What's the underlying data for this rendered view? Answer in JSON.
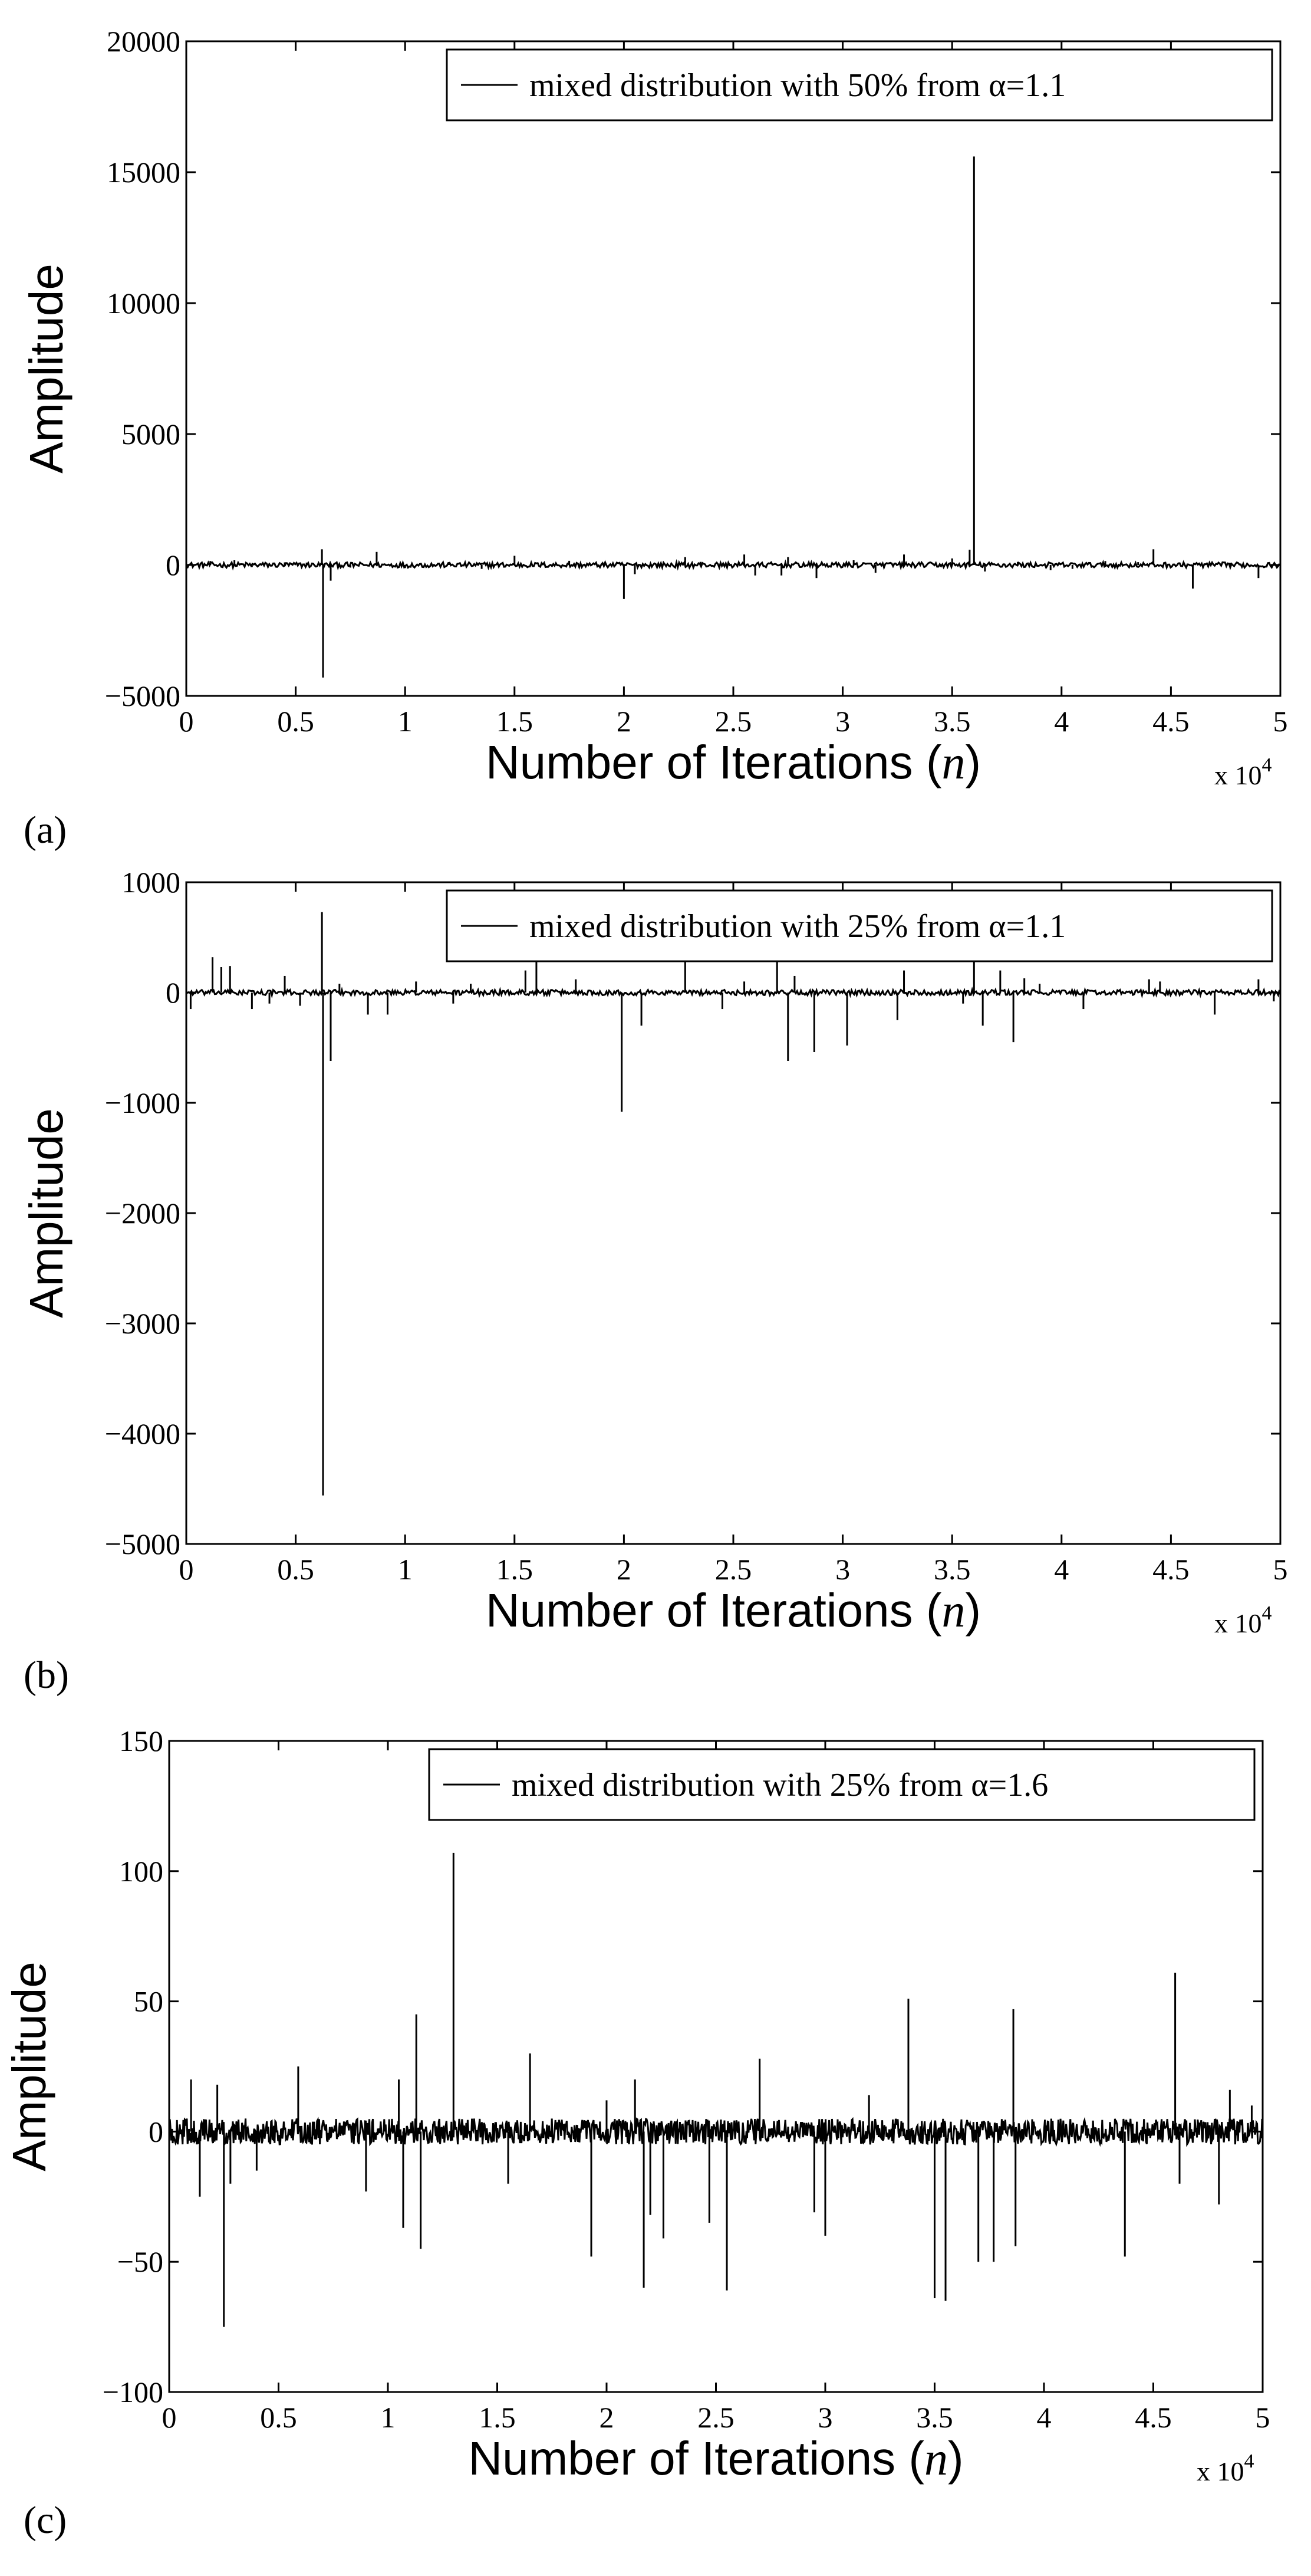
{
  "figure": {
    "panels": [
      "(a)",
      "(b)",
      "(c)"
    ]
  },
  "chart_data": [
    {
      "type": "line",
      "panel_label": "(a)",
      "xlabel": "Number of Iterations (n)",
      "xlabel_main": "Number of Iterations (",
      "xlabel_var": "n",
      "xlabel_close": ")",
      "ylabel": "Amplitude",
      "xlim": [
        0,
        5
      ],
      "ylim": [
        -5000,
        20000
      ],
      "x_scale_label": "x 10",
      "x_scale_exp": "4",
      "xticks": [
        "0",
        "0.5",
        "1",
        "1.5",
        "2",
        "2.5",
        "3",
        "3.5",
        "4",
        "4.5",
        "5"
      ],
      "yticks": [
        "-5000",
        "0",
        "5000",
        "10000",
        "15000",
        "20000"
      ],
      "legend": {
        "label": "mixed distribution with 50% from α=1.1",
        "position": "top-right"
      },
      "series": [
        {
          "name": "mixed distribution with 50% from α=1.1",
          "spikes": [
            [
              0.11,
              150
            ],
            [
              0.22,
              180
            ],
            [
              0.3,
              -80
            ],
            [
              0.45,
              100
            ],
            [
              0.55,
              90
            ],
            [
              0.62,
              600
            ],
            [
              0.625,
              -4300
            ],
            [
              0.66,
              -600
            ],
            [
              0.87,
              500
            ],
            [
              1.0,
              -120
            ],
            [
              1.2,
              90
            ],
            [
              1.5,
              350
            ],
            [
              1.75,
              160
            ],
            [
              2.0,
              -1300
            ],
            [
              2.05,
              -350
            ],
            [
              2.28,
              300
            ],
            [
              2.55,
              400
            ],
            [
              2.6,
              -400
            ],
            [
              2.72,
              -400
            ],
            [
              2.75,
              300
            ],
            [
              2.88,
              -500
            ],
            [
              3.15,
              -300
            ],
            [
              3.28,
              400
            ],
            [
              3.5,
              250
            ],
            [
              3.58,
              580
            ],
            [
              3.6,
              15600
            ],
            [
              3.65,
              -250
            ],
            [
              3.8,
              120
            ],
            [
              3.95,
              -200
            ],
            [
              4.2,
              150
            ],
            [
              4.42,
              600
            ],
            [
              4.6,
              -900
            ],
            [
              4.77,
              80
            ],
            [
              4.9,
              -500
            ],
            [
              0.75,
              -100
            ],
            [
              1.35,
              -150
            ],
            [
              2.35,
              120
            ],
            [
              3.05,
              180
            ],
            [
              4.05,
              -150
            ],
            [
              4.35,
              110
            ]
          ]
        }
      ],
      "grid": false
    },
    {
      "type": "line",
      "panel_label": "(b)",
      "xlabel": "Number of Iterations (n)",
      "xlabel_main": "Number of Iterations (",
      "xlabel_var": "n",
      "xlabel_close": ")",
      "ylabel": "Amplitude",
      "xlim": [
        0,
        5
      ],
      "ylim": [
        -5000,
        1000
      ],
      "x_scale_label": "x 10",
      "x_scale_exp": "4",
      "xticks": [
        "0",
        "0.5",
        "1",
        "1.5",
        "2",
        "2.5",
        "3",
        "3.5",
        "4",
        "4.5",
        "5"
      ],
      "yticks": [
        "-5000",
        "-4000",
        "-3000",
        "-2000",
        "-1000",
        "0",
        "1000"
      ],
      "legend": {
        "label": "mixed distribution with 25% from α=1.1",
        "position": "top-right"
      },
      "series": [
        {
          "name": "mixed distribution with 25% from α=1.1",
          "spikes": [
            [
              0.02,
              -150
            ],
            [
              0.12,
              320
            ],
            [
              0.16,
              230
            ],
            [
              0.2,
              240
            ],
            [
              0.3,
              -150
            ],
            [
              0.38,
              -100
            ],
            [
              0.45,
              150
            ],
            [
              0.52,
              -120
            ],
            [
              0.62,
              730
            ],
            [
              0.625,
              -4560
            ],
            [
              0.66,
              -620
            ],
            [
              0.7,
              80
            ],
            [
              0.83,
              -200
            ],
            [
              0.92,
              -200
            ],
            [
              1.05,
              100
            ],
            [
              1.22,
              -100
            ],
            [
              1.55,
              200
            ],
            [
              1.6,
              300
            ],
            [
              1.78,
              120
            ],
            [
              1.99,
              -1080
            ],
            [
              2.08,
              -300
            ],
            [
              2.28,
              300
            ],
            [
              2.45,
              -150
            ],
            [
              2.55,
              100
            ],
            [
              2.7,
              300
            ],
            [
              2.75,
              -620
            ],
            [
              2.78,
              150
            ],
            [
              2.87,
              -540
            ],
            [
              3.02,
              -480
            ],
            [
              3.25,
              -250
            ],
            [
              3.28,
              200
            ],
            [
              3.55,
              -100
            ],
            [
              3.6,
              300
            ],
            [
              3.64,
              -300
            ],
            [
              3.72,
              200
            ],
            [
              3.78,
              -450
            ],
            [
              3.83,
              130
            ],
            [
              4.1,
              -150
            ],
            [
              4.4,
              120
            ],
            [
              4.45,
              100
            ],
            [
              4.7,
              -200
            ],
            [
              4.9,
              120
            ],
            [
              4.97,
              -80
            ],
            [
              3.9,
              80
            ],
            [
              1.3,
              80
            ]
          ]
        }
      ],
      "grid": false
    },
    {
      "type": "line",
      "panel_label": "(c)",
      "xlabel": "Number of Iterations (n)",
      "xlabel_main": "Number of Iterations (",
      "xlabel_var": "n",
      "xlabel_close": ")",
      "ylabel": "Amplitude",
      "xlim": [
        0,
        5
      ],
      "ylim": [
        -100,
        150
      ],
      "x_scale_label": "x 10",
      "x_scale_exp": "4",
      "xticks": [
        "0",
        "0.5",
        "1",
        "1.5",
        "2",
        "2.5",
        "3",
        "3.5",
        "4",
        "4.5",
        "5"
      ],
      "yticks": [
        "-100",
        "-50",
        "0",
        "50",
        "100",
        "150"
      ],
      "legend": {
        "label": "mixed distribution with 25% from α=1.6",
        "position": "top-right"
      },
      "series": [
        {
          "name": "mixed distribution with 25% from α=1.6",
          "noise_amplitude": 5,
          "spikes": [
            [
              0.1,
              20
            ],
            [
              0.14,
              -25
            ],
            [
              0.22,
              18
            ],
            [
              0.25,
              -75
            ],
            [
              0.28,
              -20
            ],
            [
              0.4,
              -15
            ],
            [
              0.59,
              25
            ],
            [
              0.9,
              -23
            ],
            [
              1.05,
              20
            ],
            [
              1.07,
              -37
            ],
            [
              1.13,
              45
            ],
            [
              1.15,
              -45
            ],
            [
              1.3,
              107
            ],
            [
              1.55,
              -20
            ],
            [
              1.65,
              30
            ],
            [
              1.93,
              -48
            ],
            [
              2.13,
              20
            ],
            [
              2.17,
              -60
            ],
            [
              2.2,
              -32
            ],
            [
              2.26,
              -41
            ],
            [
              2.47,
              -35
            ],
            [
              2.55,
              -61
            ],
            [
              2.7,
              28
            ],
            [
              2.95,
              -31
            ],
            [
              3.0,
              -40
            ],
            [
              3.38,
              51
            ],
            [
              3.5,
              -64
            ],
            [
              3.55,
              -65
            ],
            [
              3.7,
              -50
            ],
            [
              3.77,
              -50
            ],
            [
              3.86,
              47
            ],
            [
              3.87,
              -44
            ],
            [
              4.37,
              -48
            ],
            [
              4.6,
              61
            ],
            [
              4.62,
              -20
            ],
            [
              4.8,
              -28
            ],
            [
              4.85,
              16
            ],
            [
              4.95,
              10
            ],
            [
              2.0,
              12
            ],
            [
              3.2,
              14
            ]
          ]
        }
      ],
      "grid": false
    }
  ]
}
